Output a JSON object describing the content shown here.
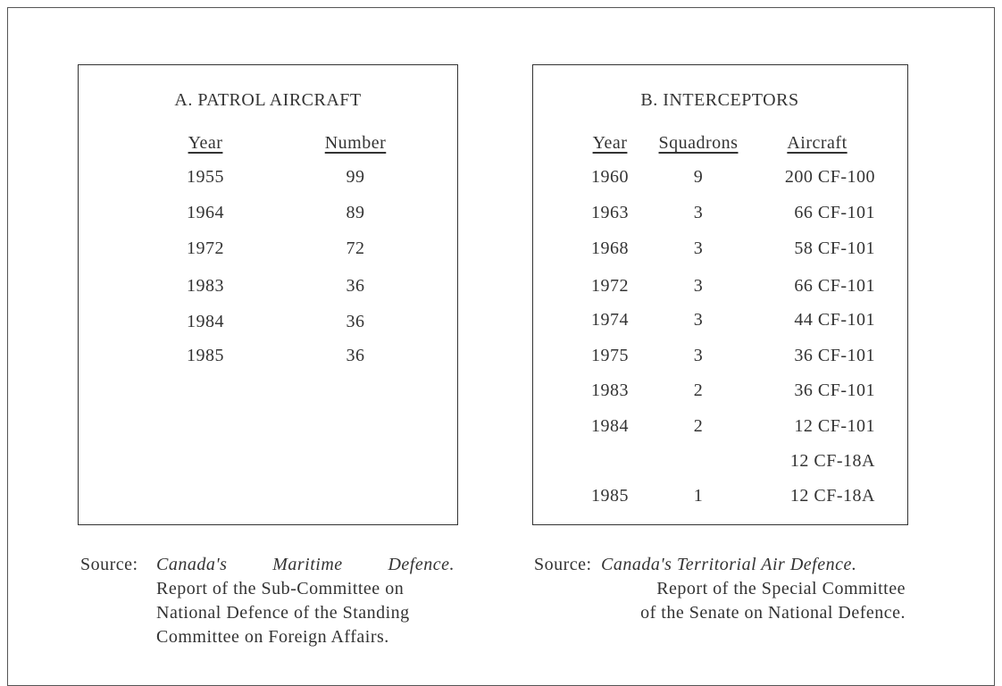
{
  "tables": [
    {
      "title": "A. PATROL AIRCRAFT",
      "headers": [
        "Year",
        "Number"
      ],
      "rows": [
        [
          "1955",
          99
        ],
        [
          "1964",
          89
        ],
        [
          "1972",
          72
        ],
        [
          "1983",
          36
        ],
        [
          "1984",
          36
        ],
        [
          "1985",
          36
        ]
      ],
      "source": {
        "label": "Source:",
        "title": "Canada's Maritime Defence.",
        "lines": [
          "Report of the Sub-Committee on",
          "National Defence of the Standing",
          "Committee on Foreign Affairs."
        ]
      }
    },
    {
      "title": "B. INTERCEPTORS",
      "headers": [
        "Year",
        "Squadrons",
        "Aircraft"
      ],
      "rows": [
        [
          "1960",
          9,
          "200 CF-100"
        ],
        [
          "1963",
          3,
          "66 CF-101"
        ],
        [
          "1968",
          3,
          "58 CF-101"
        ],
        [
          "1972",
          3,
          "66 CF-101"
        ],
        [
          "1974",
          3,
          "44 CF-101"
        ],
        [
          "1975",
          3,
          "36 CF-101"
        ],
        [
          "1983",
          2,
          "36 CF-101"
        ],
        [
          "1984",
          2,
          "12 CF-101"
        ],
        [
          null,
          null,
          "12 CF-18A"
        ],
        [
          "1985",
          1,
          "12 CF-18A"
        ]
      ],
      "source": {
        "label": "Source:",
        "title": "Canada's Territorial Air Defence.",
        "lines": [
          "Report of the Special Committee",
          "of the Senate on National Defence."
        ]
      }
    }
  ]
}
